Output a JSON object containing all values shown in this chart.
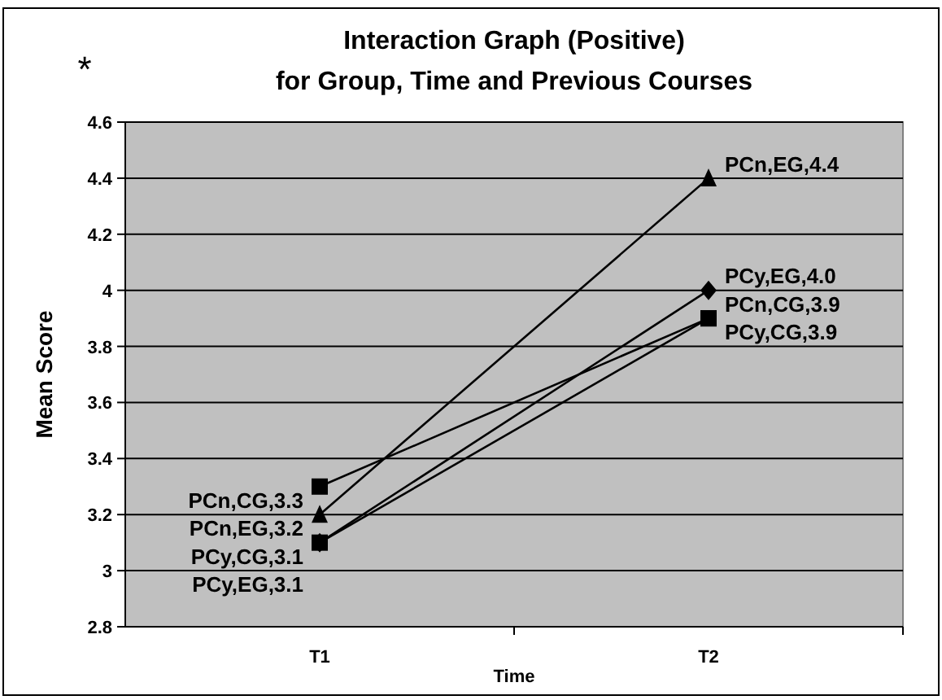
{
  "chart_data": {
    "type": "line",
    "title": "Interaction Graph (Positive)\nfor Group, Time and Previous Courses",
    "xlabel": "Time",
    "ylabel": "Mean Score",
    "annotations": [
      "*"
    ],
    "categories": [
      "T1",
      "T2"
    ],
    "ylim": [
      2.8,
      4.6
    ],
    "yticks": [
      2.8,
      3,
      3.2,
      3.4,
      3.6,
      3.8,
      4,
      4.2,
      4.4,
      4.6
    ],
    "grid": "y",
    "legend": false,
    "line_style": "solid",
    "series": [
      {
        "color": "#000000",
        "marker": "square",
        "values": [
          3.3,
          3.9
        ],
        "value_labels": [
          "PCn,CG,3.3",
          "PCn,CG,3.9"
        ]
      },
      {
        "color": "#000000",
        "marker": "triangle",
        "values": [
          3.2,
          4.4
        ],
        "value_labels": [
          "PCn,EG,3.2",
          "PCn,EG,4.4"
        ]
      },
      {
        "color": "#000000",
        "marker": "square",
        "values": [
          3.1,
          3.9
        ],
        "value_labels": [
          "PCy,CG,3.1",
          "PCy,CG,3.9"
        ]
      },
      {
        "color": "#000000",
        "marker": "diamond",
        "values": [
          3.1,
          4.0
        ],
        "value_labels": [
          "PCy,EG,3.1",
          "PCy,EG,4.0"
        ]
      }
    ]
  }
}
